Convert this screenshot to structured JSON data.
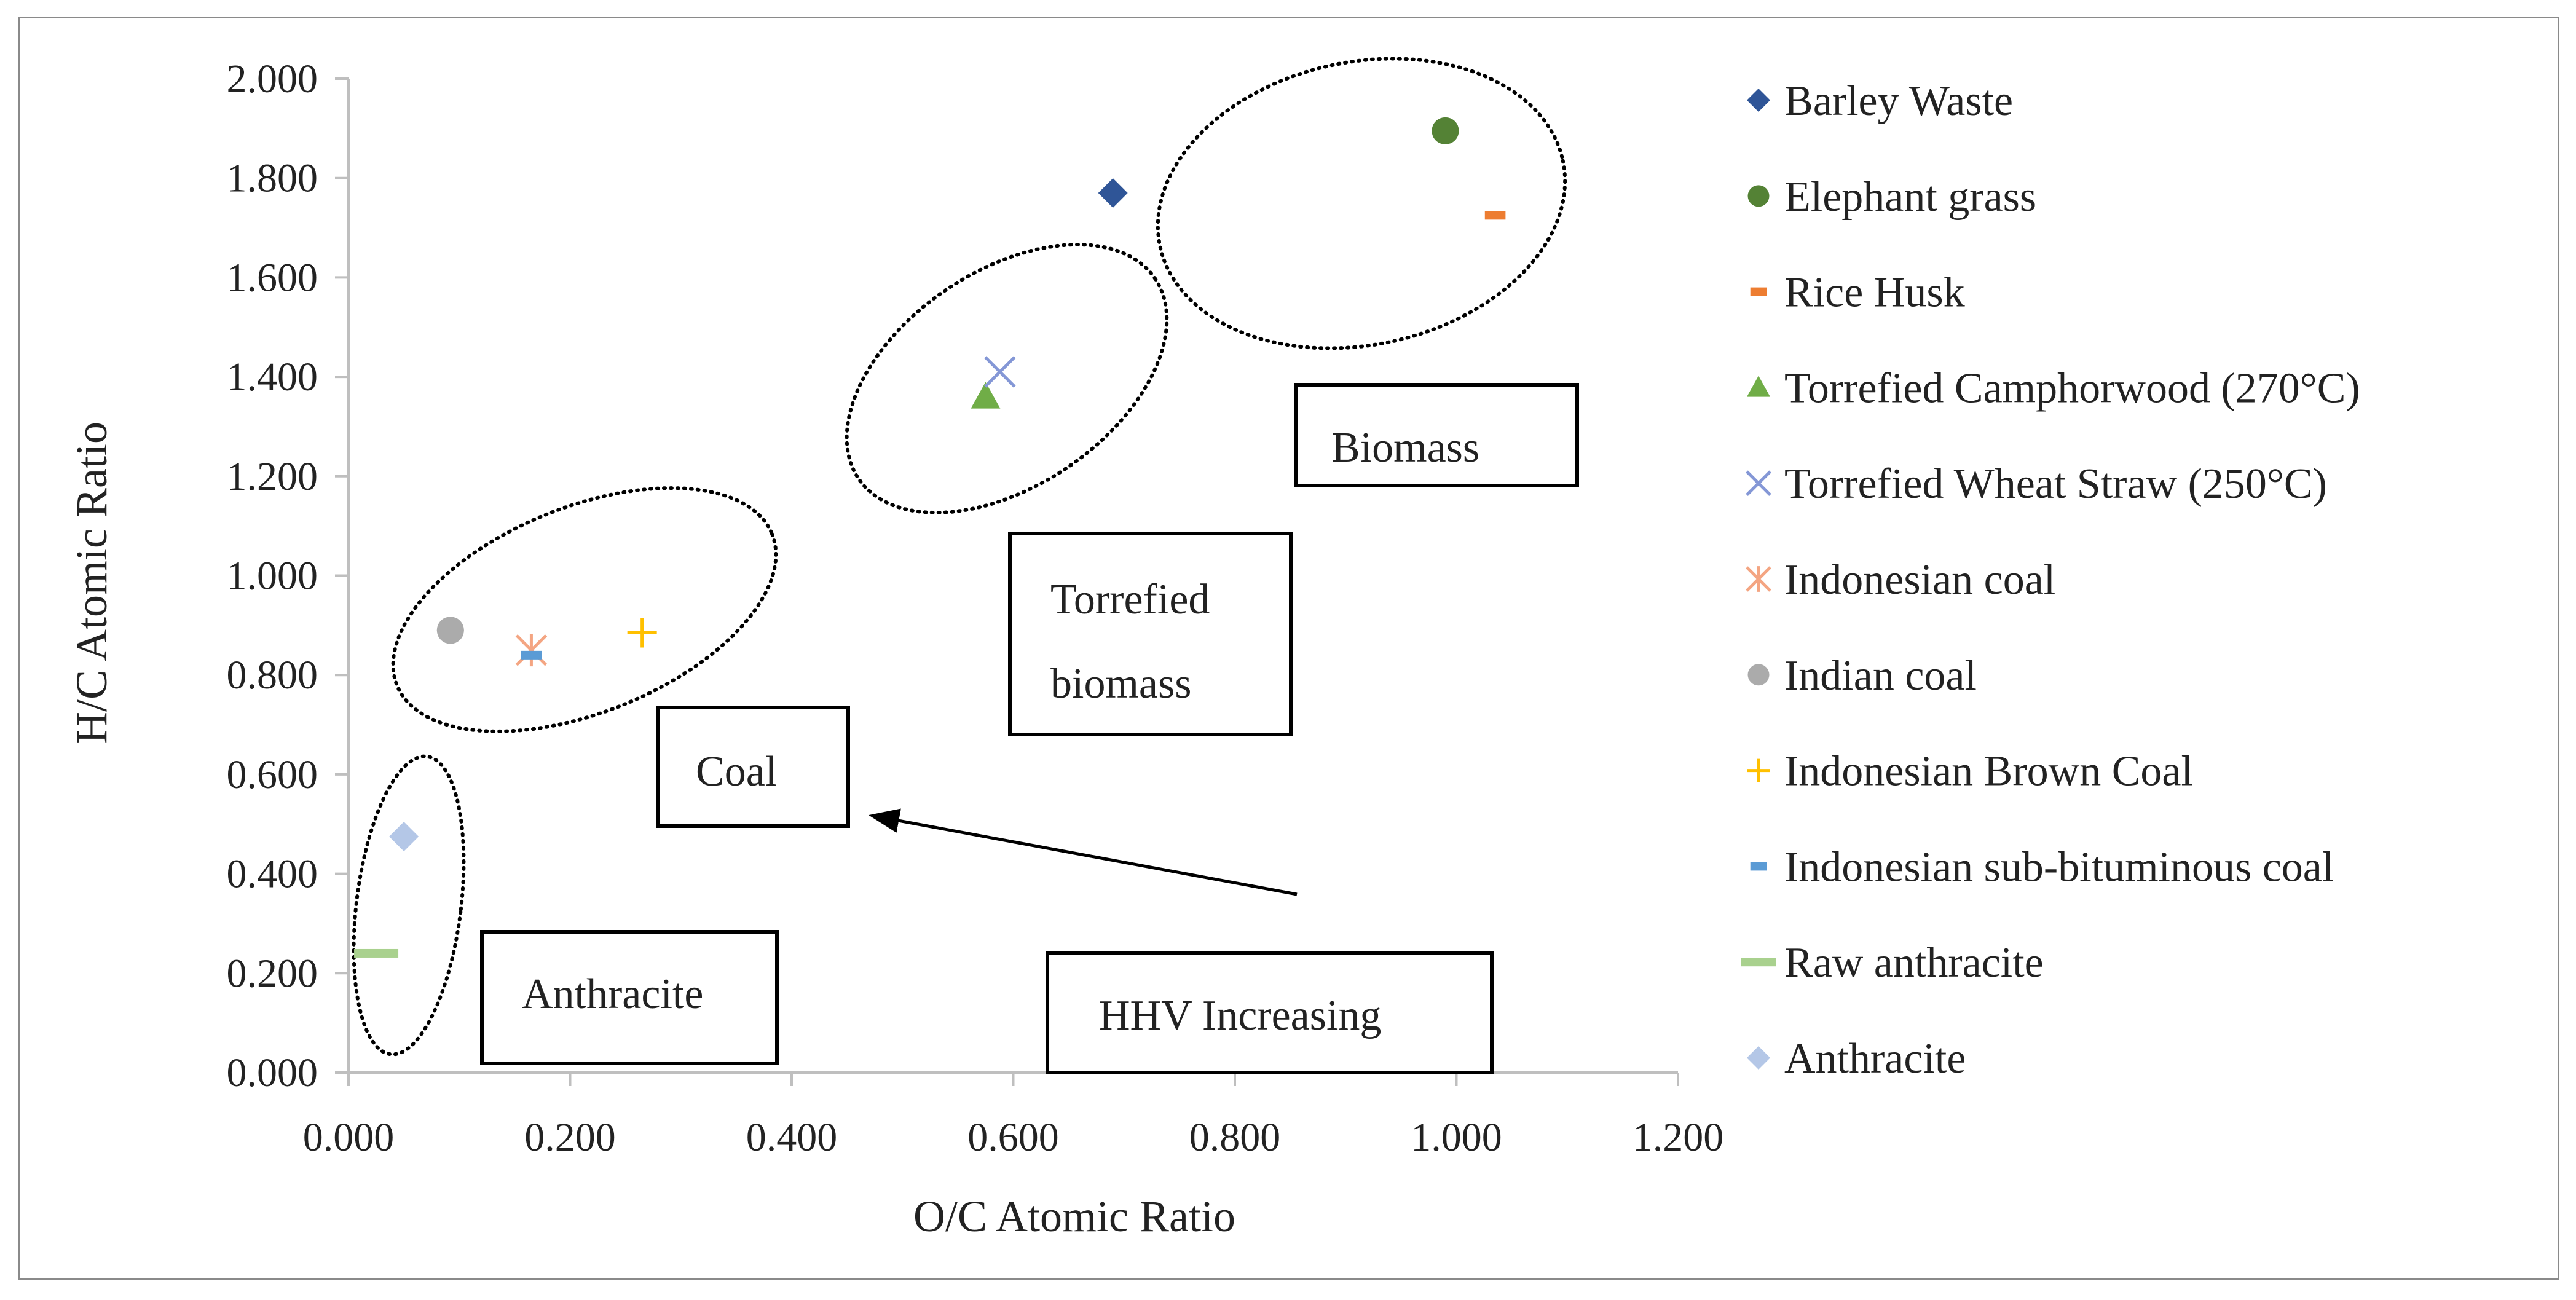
{
  "chart_data": {
    "type": "scatter",
    "title": "",
    "xlabel": "O/C Atomic Ratio",
    "ylabel": "H/C  Atomic Ratio",
    "xlim": [
      0,
      1.2
    ],
    "ylim": [
      0,
      2.0
    ],
    "x_ticks": [
      "0.000",
      "0.200",
      "0.400",
      "0.600",
      "0.800",
      "1.000",
      "1.200"
    ],
    "y_ticks": [
      "0.000",
      "0.200",
      "0.400",
      "0.600",
      "0.800",
      "1.000",
      "1.200",
      "1.400",
      "1.600",
      "1.800",
      "2.000"
    ],
    "grid": false,
    "legend_position": "right",
    "series": [
      {
        "name": "Barley Waste",
        "marker": "diamond",
        "color": "#2F5597",
        "x": 0.69,
        "y": 1.77
      },
      {
        "name": "Elephant grass",
        "marker": "circle",
        "color": "#548235",
        "x": 0.99,
        "y": 1.895
      },
      {
        "name": "Rice Husk",
        "marker": "dash",
        "color": "#ED7D31",
        "x": 1.035,
        "y": 1.725
      },
      {
        "name": "Torrefied  Camphorwood  (270°C)",
        "marker": "triangle",
        "color": "#70AD47",
        "x": 0.575,
        "y": 1.36
      },
      {
        "name": "Torrefied Wheat Straw (250°C)",
        "marker": "x",
        "color": "#8497D6",
        "x": 0.588,
        "y": 1.41
      },
      {
        "name": "Indonesian coal",
        "marker": "asterisk",
        "color": "#F4A582",
        "x": 0.165,
        "y": 0.85
      },
      {
        "name": "Indian coal",
        "marker": "circle",
        "color": "#ABABAB",
        "x": 0.092,
        "y": 0.89
      },
      {
        "name": "Indonesian Brown Coal",
        "marker": "plus",
        "color": "#FFC000",
        "x": 0.265,
        "y": 0.885
      },
      {
        "name": "Indonesian sub-bituminous coal",
        "marker": "dash",
        "color": "#5B9BD5",
        "x": 0.165,
        "y": 0.84
      },
      {
        "name": "Raw anthracite",
        "marker": "longdash",
        "color": "#A9D18E",
        "x": 0.025,
        "y": 0.24
      },
      {
        "name": "Anthracite",
        "marker": "diamond",
        "color": "#B4C7E7",
        "x": 0.05,
        "y": 0.475
      }
    ],
    "annotations": [
      {
        "text": "Biomass"
      },
      {
        "text": "Torrefied biomass"
      },
      {
        "text": "Coal"
      },
      {
        "text": "Anthracite"
      },
      {
        "text": "HHV Increasing"
      }
    ]
  },
  "annotations": {
    "biomass": "Biomass",
    "torrefied_line1": "Torrefied",
    "torrefied_line2": "biomass",
    "coal": "Coal",
    "anthracite": "Anthracite",
    "hhv": "HHV Increasing"
  }
}
